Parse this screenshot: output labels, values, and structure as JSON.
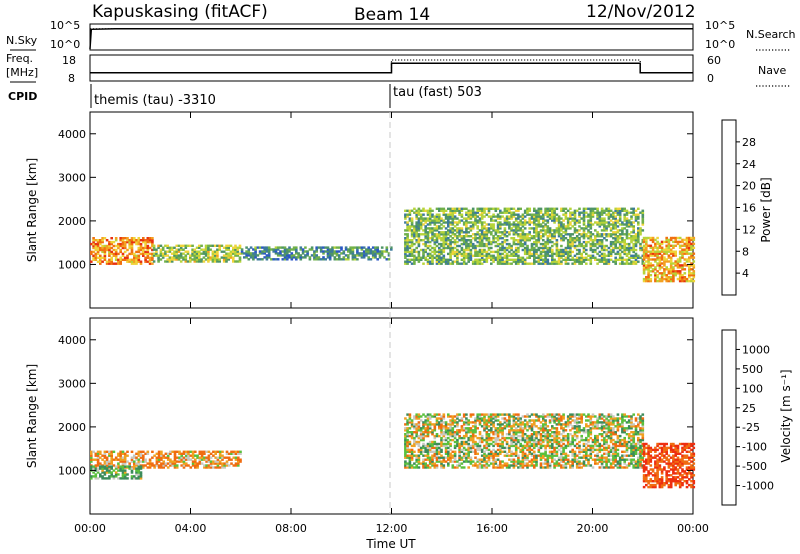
{
  "header": {
    "station": "Kapuskasing (fitACF)",
    "beam": "Beam 14",
    "date": "12/Nov/2012"
  },
  "summary_panel": {
    "nsky_label": "N.Sky",
    "nsky_ticks": [
      "10^5",
      "10^0"
    ],
    "nsearch_label": "N.Search",
    "nsearch_ticks": [
      "10^5",
      "10^0"
    ],
    "freq_label": "Freq.",
    "freq_unit": "[MHz]",
    "freq_ticks": [
      "18",
      "8"
    ],
    "nave_label": "Nave",
    "nave_ticks": [
      "60",
      "0"
    ],
    "cpid_label": "CPID",
    "modes": [
      {
        "name": "themis (tau) -3310",
        "start_hour": 0
      },
      {
        "name": "tau (fast) 503",
        "start_hour": 12
      }
    ]
  },
  "time_axis": {
    "title": "Time UT",
    "ticks": [
      "00:00",
      "04:00",
      "08:00",
      "12:00",
      "16:00",
      "20:00",
      "00:00"
    ],
    "range_hours": [
      0,
      24
    ]
  },
  "colorbars": {
    "power": {
      "label": "Power [dB]",
      "ticks": [
        "4",
        "8",
        "12",
        "16",
        "20",
        "24",
        "28"
      ],
      "colors": [
        "#1a1aff",
        "#2a56c8",
        "#3c7a9c",
        "#4e9467",
        "#70b04a",
        "#b6d43a",
        "#f0d43a",
        "#f4a020",
        "#f07010",
        "#e83010",
        "#ff0000"
      ]
    },
    "velocity": {
      "label": "Velocity [m s⁻¹]",
      "ticks": [
        "1000",
        "500",
        "100",
        "25",
        "-25",
        "-100",
        "-500",
        "-1000"
      ],
      "colors": [
        "#1846c8",
        "#2a6e98",
        "#3c8c5a",
        "#5ac03c",
        "#c8c8c0",
        "#f0a020",
        "#f06c10",
        "#ee2e10",
        "#ff0000"
      ]
    }
  },
  "chart_data": [
    {
      "type": "line",
      "title": "N.Sky / N.Search",
      "xlabel": "",
      "ylabel": "N.Sky",
      "x_range_hours": [
        0,
        24
      ],
      "series": [
        {
          "name": "N.Sky",
          "x": [
            0.0,
            0.05,
            1,
            4,
            8,
            11.9,
            12.1,
            16,
            21.9,
            22,
            24
          ],
          "y": [
            1,
            30000,
            40000,
            40000,
            40000,
            40000,
            40000,
            40000,
            40000,
            40000,
            40000
          ]
        },
        {
          "name": "N.Search",
          "x": [
            0,
            12,
            24
          ],
          "y": [
            40000,
            40000,
            40000
          ]
        }
      ]
    },
    {
      "type": "line",
      "title": "Freq. / Nave",
      "x_range_hours": [
        0,
        24
      ],
      "series": [
        {
          "name": "Freq",
          "x": [
            0,
            12,
            12.0,
            21.9,
            21.9,
            24
          ],
          "y": [
            11,
            11,
            15,
            15,
            11,
            11
          ]
        },
        {
          "name": "Nave",
          "x": [
            0,
            12,
            12.0,
            21.9,
            21.9,
            24
          ],
          "y": [
            18,
            18,
            50,
            50,
            18,
            18
          ]
        }
      ]
    },
    {
      "type": "heatmap",
      "title": "Power",
      "xlabel": "",
      "ylabel": "Slant Range [km]",
      "xlim_hours": [
        0,
        24
      ],
      "ylim_km": [
        0,
        4500
      ],
      "yticks": [
        "1000",
        "2000",
        "3000",
        "4000"
      ],
      "value_range_db": [
        0,
        30
      ],
      "regions": [
        {
          "t0": 0.0,
          "t1": 2.5,
          "r0": 1000,
          "r1": 1600,
          "value": 22
        },
        {
          "t0": 2.5,
          "t1": 6,
          "r0": 1050,
          "r1": 1450,
          "value": 14
        },
        {
          "t0": 6,
          "t1": 12,
          "r0": 1100,
          "r1": 1400,
          "value": 8
        },
        {
          "t0": 12.5,
          "t1": 22,
          "r0": 1000,
          "r1": 2300,
          "value": 12
        },
        {
          "t0": 22,
          "t1": 24,
          "r0": 600,
          "r1": 1600,
          "value": 20
        }
      ]
    },
    {
      "type": "heatmap",
      "title": "Velocity",
      "xlabel": "Time UT",
      "ylabel": "Slant Range [km]",
      "xlim_hours": [
        0,
        24
      ],
      "ylim_km": [
        0,
        4500
      ],
      "yticks": [
        "1000",
        "2000",
        "3000",
        "4000"
      ],
      "value_range_ms": [
        -1000,
        1000
      ],
      "regions": [
        {
          "t0": 0.0,
          "t1": 6,
          "r0": 1050,
          "r1": 1450,
          "value": -100
        },
        {
          "t0": 0.0,
          "t1": 2,
          "r0": 800,
          "r1": 1100,
          "value": 100
        },
        {
          "t0": 12.5,
          "t1": 22,
          "r0": 1050,
          "r1": 2300,
          "value": 0
        },
        {
          "t0": 22,
          "t1": 24,
          "r0": 600,
          "r1": 1600,
          "value": -500
        }
      ]
    }
  ]
}
